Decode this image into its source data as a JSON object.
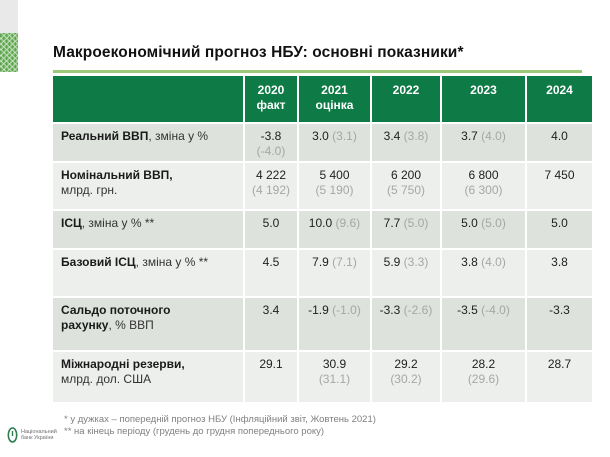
{
  "title": "Макроекономічний прогноз НБУ: основні показники*",
  "colors": {
    "header_green": "#0e7a46",
    "underline_green": "#9dc877",
    "row_dark": "#dde2dd",
    "row_light": "#edefed",
    "prev_gray": "#a6a6a6",
    "pattern_green": "#6fb25c"
  },
  "table": {
    "columns": [
      {
        "id": "col-2020",
        "lines": [
          "2020",
          "факт"
        ]
      },
      {
        "id": "col-2021",
        "lines": [
          "2021",
          "оцінка"
        ]
      },
      {
        "id": "col-2022",
        "lines": [
          "2022"
        ]
      },
      {
        "id": "col-2023",
        "lines": [
          "2023"
        ]
      },
      {
        "id": "col-2024",
        "lines": [
          "2024"
        ]
      }
    ],
    "rows": [
      {
        "label": [
          {
            "t": "Реальний ВВП",
            "b": true
          },
          {
            "t": ", зміна у %",
            "b": false
          }
        ],
        "cells": [
          {
            "v": "-3.8",
            "p": "(-4.0)",
            "s": true
          },
          {
            "v": "3.0",
            "p": "(3.1)"
          },
          {
            "v": "3.4",
            "p": "(3.8)"
          },
          {
            "v": "3.7",
            "p": "(4.0)"
          },
          {
            "v": "4.0"
          }
        ]
      },
      {
        "label": [
          {
            "t": "Номінальний ВВП,",
            "b": true
          },
          {
            "t": "млрд. грн.",
            "b": false,
            "nl": true
          }
        ],
        "cells": [
          {
            "v": "4 222",
            "p": "(4 192)",
            "s": true
          },
          {
            "v": "5 400",
            "p": "(5 190)",
            "s": true
          },
          {
            "v": "6 200",
            "p": "(5 750)",
            "s": true
          },
          {
            "v": "6 800",
            "p": "(6 300)",
            "s": true
          },
          {
            "v": "7 450"
          }
        ]
      },
      {
        "label": [
          {
            "t": "ІСЦ",
            "b": true
          },
          {
            "t": ", зміна у % **",
            "b": false
          }
        ],
        "cells": [
          {
            "v": "5.0"
          },
          {
            "v": "10.0",
            "p": "(9.6)"
          },
          {
            "v": "7.7",
            "p": "(5.0)"
          },
          {
            "v": "5.0",
            "p": "(5.0)"
          },
          {
            "v": "5.0"
          }
        ]
      },
      {
        "label": [
          {
            "t": "Базовий ІСЦ",
            "b": true
          },
          {
            "t": ", зміна у % **",
            "b": false
          }
        ],
        "cells": [
          {
            "v": "4.5"
          },
          {
            "v": "7.9",
            "p": "(7.1)"
          },
          {
            "v": "5.9",
            "p": "(3.3)"
          },
          {
            "v": "3.8",
            "p": "(4.0)"
          },
          {
            "v": "3.8"
          }
        ]
      },
      {
        "label": [
          {
            "t": "Сальдо поточного",
            "b": true
          },
          {
            "t": "рахунку",
            "b": true,
            "nl": true
          },
          {
            "t": ", % ВВП",
            "b": false
          }
        ],
        "cells": [
          {
            "v": "3.4"
          },
          {
            "v": "-1.9",
            "p": "(-1.0)"
          },
          {
            "v": "-3.3",
            "p": "(-2.6)"
          },
          {
            "v": "-3.5",
            "p": "(-4.0)"
          },
          {
            "v": "-3.3"
          }
        ]
      },
      {
        "label": [
          {
            "t": "Міжнародні резерви,",
            "b": true
          },
          {
            "t": "млрд. дол. США",
            "b": false,
            "nl": true
          }
        ],
        "cells": [
          {
            "v": "29.1"
          },
          {
            "v": "30.9",
            "p": "(31.1)",
            "s": true
          },
          {
            "v": "29.2",
            "p": "(30.2)",
            "s": true
          },
          {
            "v": "28.2",
            "p": "(29.6)",
            "s": true
          },
          {
            "v": "28.7"
          }
        ]
      }
    ]
  },
  "footnotes": [
    "* у дужках – попередній прогноз НБУ (Інфляційний звіт, Жовтень 2021)",
    "** на кінець періоду (грудень до грудня попереднього року)"
  ],
  "logo": {
    "line1": "Національний",
    "line2": "банк України"
  }
}
